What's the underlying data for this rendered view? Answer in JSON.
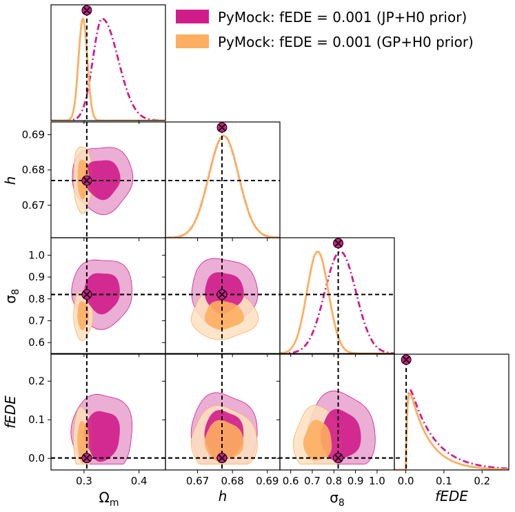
{
  "chart_data": {
    "type": "corner",
    "parameters": [
      "Ωm",
      "h",
      "σ8",
      "fEDE"
    ],
    "axis_labels": {
      "omega_m": "Ω",
      "omega_m_sub": "m",
      "h": "h",
      "sigma8": "σ",
      "sigma8_sub": "8",
      "fede": "fEDE"
    },
    "fiducial": {
      "omega_m": 0.305,
      "h": 0.677,
      "sigma8": 0.82,
      "fede": 0.001
    },
    "ranges": {
      "omega_m": [
        0.24,
        0.448
      ],
      "h": [
        0.6608,
        0.6936
      ],
      "sigma8": [
        0.55,
        1.08
      ],
      "fede": [
        -0.03,
        0.27
      ]
    },
    "ticks": {
      "omega_m": [
        0.3,
        0.4
      ],
      "omega_m_labels": [
        "0.3",
        "0.4"
      ],
      "h": [
        0.67,
        0.68,
        0.69
      ],
      "h_labels": [
        "0.67",
        "0.68",
        "0.69"
      ],
      "sigma8": [
        0.6,
        0.7,
        0.8,
        0.9,
        1.0
      ],
      "sigma8_labels": [
        "0.6",
        "0.7",
        "0.8",
        "0.9",
        "1.0"
      ],
      "fede": [
        0.0,
        0.1,
        0.2
      ],
      "fede_labels": [
        "0.0",
        "0.1",
        "0.2"
      ]
    },
    "legend_position": "top-right",
    "series": [
      {
        "name": "PyMock: fEDE = 0.001 (JP+H0 prior)",
        "color": "#d01c8b",
        "light": "#e8a0cc",
        "linestyle": "dash-dot",
        "mean": {
          "omega_m": 0.333,
          "h": 0.6775,
          "sigma8": 0.83,
          "fede": 0.06
        },
        "sd": {
          "omega_m": 0.025,
          "h": 0.0043,
          "sigma8": 0.072,
          "fede": 0.05
        }
      },
      {
        "name": "PyMock: fEDE = 0.001 (GP+H0 prior)",
        "color": "#fdae61",
        "light": "#fde0bf",
        "linestyle": "solid",
        "mean": {
          "omega_m": 0.298,
          "h": 0.6775,
          "sigma8": 0.725,
          "fede": 0.045
        },
        "sd": {
          "omega_m": 0.008,
          "h": 0.0043,
          "sigma8": 0.05,
          "fede": 0.04
        }
      }
    ],
    "grid": false
  }
}
